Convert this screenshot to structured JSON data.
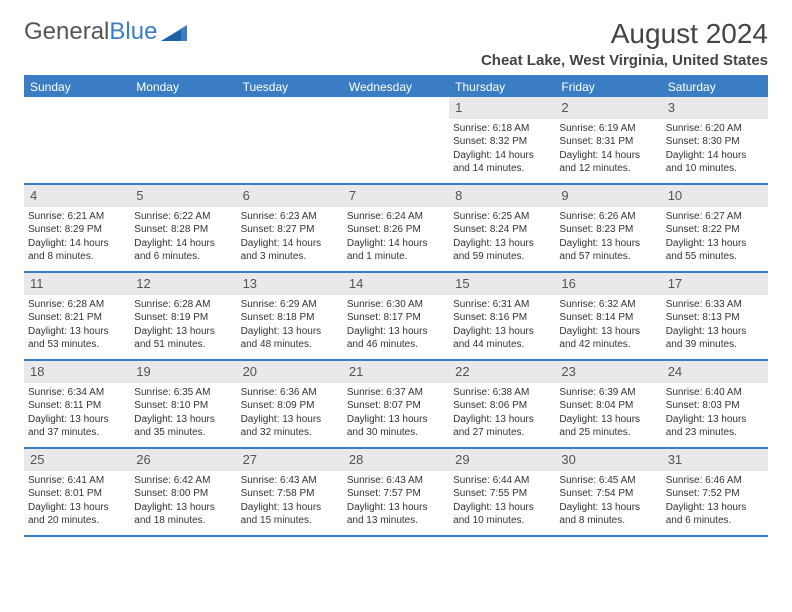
{
  "brand": {
    "name_a": "General",
    "name_b": "Blue"
  },
  "header": {
    "title": "August 2024",
    "location": "Cheat Lake, West Virginia, United States"
  },
  "colors": {
    "accent": "#3b7dc4",
    "header_text": "#ffffff",
    "daynum_bg": "#e9e9e9",
    "text": "#333333",
    "background": "#ffffff"
  },
  "columns": [
    "Sunday",
    "Monday",
    "Tuesday",
    "Wednesday",
    "Thursday",
    "Friday",
    "Saturday"
  ],
  "cells": [
    {
      "day": "",
      "sunrise": "",
      "sunset": "",
      "daylight": ""
    },
    {
      "day": "",
      "sunrise": "",
      "sunset": "",
      "daylight": ""
    },
    {
      "day": "",
      "sunrise": "",
      "sunset": "",
      "daylight": ""
    },
    {
      "day": "",
      "sunrise": "",
      "sunset": "",
      "daylight": ""
    },
    {
      "day": "1",
      "sunrise": "Sunrise: 6:18 AM",
      "sunset": "Sunset: 8:32 PM",
      "daylight": "Daylight: 14 hours and 14 minutes."
    },
    {
      "day": "2",
      "sunrise": "Sunrise: 6:19 AM",
      "sunset": "Sunset: 8:31 PM",
      "daylight": "Daylight: 14 hours and 12 minutes."
    },
    {
      "day": "3",
      "sunrise": "Sunrise: 6:20 AM",
      "sunset": "Sunset: 8:30 PM",
      "daylight": "Daylight: 14 hours and 10 minutes."
    },
    {
      "day": "4",
      "sunrise": "Sunrise: 6:21 AM",
      "sunset": "Sunset: 8:29 PM",
      "daylight": "Daylight: 14 hours and 8 minutes."
    },
    {
      "day": "5",
      "sunrise": "Sunrise: 6:22 AM",
      "sunset": "Sunset: 8:28 PM",
      "daylight": "Daylight: 14 hours and 6 minutes."
    },
    {
      "day": "6",
      "sunrise": "Sunrise: 6:23 AM",
      "sunset": "Sunset: 8:27 PM",
      "daylight": "Daylight: 14 hours and 3 minutes."
    },
    {
      "day": "7",
      "sunrise": "Sunrise: 6:24 AM",
      "sunset": "Sunset: 8:26 PM",
      "daylight": "Daylight: 14 hours and 1 minute."
    },
    {
      "day": "8",
      "sunrise": "Sunrise: 6:25 AM",
      "sunset": "Sunset: 8:24 PM",
      "daylight": "Daylight: 13 hours and 59 minutes."
    },
    {
      "day": "9",
      "sunrise": "Sunrise: 6:26 AM",
      "sunset": "Sunset: 8:23 PM",
      "daylight": "Daylight: 13 hours and 57 minutes."
    },
    {
      "day": "10",
      "sunrise": "Sunrise: 6:27 AM",
      "sunset": "Sunset: 8:22 PM",
      "daylight": "Daylight: 13 hours and 55 minutes."
    },
    {
      "day": "11",
      "sunrise": "Sunrise: 6:28 AM",
      "sunset": "Sunset: 8:21 PM",
      "daylight": "Daylight: 13 hours and 53 minutes."
    },
    {
      "day": "12",
      "sunrise": "Sunrise: 6:28 AM",
      "sunset": "Sunset: 8:19 PM",
      "daylight": "Daylight: 13 hours and 51 minutes."
    },
    {
      "day": "13",
      "sunrise": "Sunrise: 6:29 AM",
      "sunset": "Sunset: 8:18 PM",
      "daylight": "Daylight: 13 hours and 48 minutes."
    },
    {
      "day": "14",
      "sunrise": "Sunrise: 6:30 AM",
      "sunset": "Sunset: 8:17 PM",
      "daylight": "Daylight: 13 hours and 46 minutes."
    },
    {
      "day": "15",
      "sunrise": "Sunrise: 6:31 AM",
      "sunset": "Sunset: 8:16 PM",
      "daylight": "Daylight: 13 hours and 44 minutes."
    },
    {
      "day": "16",
      "sunrise": "Sunrise: 6:32 AM",
      "sunset": "Sunset: 8:14 PM",
      "daylight": "Daylight: 13 hours and 42 minutes."
    },
    {
      "day": "17",
      "sunrise": "Sunrise: 6:33 AM",
      "sunset": "Sunset: 8:13 PM",
      "daylight": "Daylight: 13 hours and 39 minutes."
    },
    {
      "day": "18",
      "sunrise": "Sunrise: 6:34 AM",
      "sunset": "Sunset: 8:11 PM",
      "daylight": "Daylight: 13 hours and 37 minutes."
    },
    {
      "day": "19",
      "sunrise": "Sunrise: 6:35 AM",
      "sunset": "Sunset: 8:10 PM",
      "daylight": "Daylight: 13 hours and 35 minutes."
    },
    {
      "day": "20",
      "sunrise": "Sunrise: 6:36 AM",
      "sunset": "Sunset: 8:09 PM",
      "daylight": "Daylight: 13 hours and 32 minutes."
    },
    {
      "day": "21",
      "sunrise": "Sunrise: 6:37 AM",
      "sunset": "Sunset: 8:07 PM",
      "daylight": "Daylight: 13 hours and 30 minutes."
    },
    {
      "day": "22",
      "sunrise": "Sunrise: 6:38 AM",
      "sunset": "Sunset: 8:06 PM",
      "daylight": "Daylight: 13 hours and 27 minutes."
    },
    {
      "day": "23",
      "sunrise": "Sunrise: 6:39 AM",
      "sunset": "Sunset: 8:04 PM",
      "daylight": "Daylight: 13 hours and 25 minutes."
    },
    {
      "day": "24",
      "sunrise": "Sunrise: 6:40 AM",
      "sunset": "Sunset: 8:03 PM",
      "daylight": "Daylight: 13 hours and 23 minutes."
    },
    {
      "day": "25",
      "sunrise": "Sunrise: 6:41 AM",
      "sunset": "Sunset: 8:01 PM",
      "daylight": "Daylight: 13 hours and 20 minutes."
    },
    {
      "day": "26",
      "sunrise": "Sunrise: 6:42 AM",
      "sunset": "Sunset: 8:00 PM",
      "daylight": "Daylight: 13 hours and 18 minutes."
    },
    {
      "day": "27",
      "sunrise": "Sunrise: 6:43 AM",
      "sunset": "Sunset: 7:58 PM",
      "daylight": "Daylight: 13 hours and 15 minutes."
    },
    {
      "day": "28",
      "sunrise": "Sunrise: 6:43 AM",
      "sunset": "Sunset: 7:57 PM",
      "daylight": "Daylight: 13 hours and 13 minutes."
    },
    {
      "day": "29",
      "sunrise": "Sunrise: 6:44 AM",
      "sunset": "Sunset: 7:55 PM",
      "daylight": "Daylight: 13 hours and 10 minutes."
    },
    {
      "day": "30",
      "sunrise": "Sunrise: 6:45 AM",
      "sunset": "Sunset: 7:54 PM",
      "daylight": "Daylight: 13 hours and 8 minutes."
    },
    {
      "day": "31",
      "sunrise": "Sunrise: 6:46 AM",
      "sunset": "Sunset: 7:52 PM",
      "daylight": "Daylight: 13 hours and 6 minutes."
    }
  ]
}
